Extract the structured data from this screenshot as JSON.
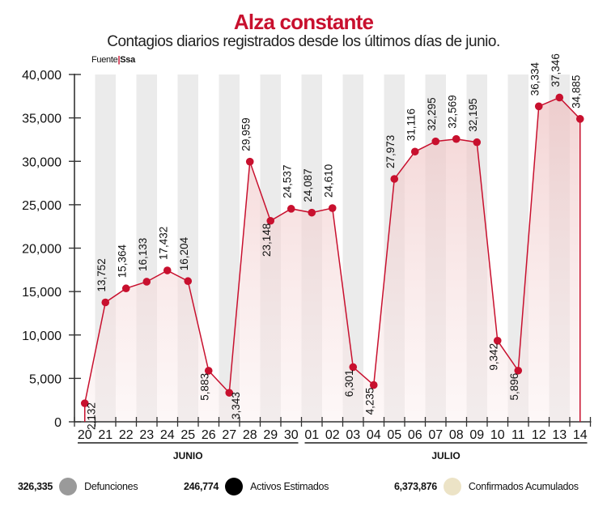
{
  "header": {
    "title": "Alza constante",
    "subtitle": "Contagios diarios registrados desde los últimos días de junio.",
    "source_label": "Fuente",
    "source_value": "Ssa"
  },
  "colors": {
    "accent": "#c8102e",
    "line": "#c8102e",
    "stripe": "#ebebeb",
    "fill_top": "#eebfbf",
    "fill_bottom": "#fbeeee"
  },
  "chart_data": {
    "type": "area",
    "title": "Alza constante",
    "subtitle": "Contagios diarios registrados desde los últimos días de junio.",
    "xlabel": "",
    "ylabel": "",
    "ylim": [
      0,
      40000
    ],
    "yticks": [
      0,
      5000,
      10000,
      15000,
      20000,
      25000,
      30000,
      35000,
      40000
    ],
    "ytick_labels": [
      "0",
      "5,000",
      "10,000",
      "15,000",
      "20,000",
      "25,000",
      "30,000",
      "35,000",
      "40,000"
    ],
    "categories": [
      "20",
      "21",
      "22",
      "23",
      "24",
      "25",
      "26",
      "27",
      "28",
      "29",
      "30",
      "01",
      "02",
      "03",
      "04",
      "05",
      "06",
      "07",
      "08",
      "09",
      "10",
      "11",
      "12",
      "13",
      "14"
    ],
    "months": [
      {
        "label": "JUNIO",
        "from": 0,
        "to": 10
      },
      {
        "label": "JULIO",
        "from": 11,
        "to": 24
      }
    ],
    "series": [
      {
        "name": "Contagios diarios",
        "values": [
          2132,
          13752,
          15364,
          16133,
          17432,
          16204,
          5883,
          3343,
          29959,
          23148,
          24537,
          24087,
          24610,
          6301,
          4235,
          27973,
          31116,
          32295,
          32569,
          32195,
          9342,
          5896,
          36334,
          37346,
          34885
        ],
        "labels": [
          "2,132",
          "13,752",
          "15,364",
          "16,133",
          "17,432",
          "16,204",
          "5,883",
          "3,343",
          "29,959",
          "23,148",
          "24,537",
          "24,087",
          "24,610",
          "6,301",
          "4,235",
          "27,973",
          "31,116",
          "32,295",
          "32,569",
          "32,195",
          "9,342",
          "5,896",
          "36,334",
          "37,346",
          "34,885"
        ],
        "label_positions": [
          "below-right",
          "above",
          "above",
          "above",
          "above",
          "above",
          "below",
          "right",
          "above",
          "below",
          "above",
          "above",
          "above",
          "below",
          "below",
          "above",
          "above",
          "above",
          "above",
          "above",
          "below",
          "below",
          "above",
          "above",
          "above"
        ]
      }
    ],
    "grid": false,
    "stripes": "alternating vertical bands",
    "legend": "bottom"
  },
  "summary": [
    {
      "value": "326,335",
      "label": "Defunciones",
      "color": "#9a9a9a"
    },
    {
      "value": "246,774",
      "label": "Activos Estimados",
      "color": "#000000"
    },
    {
      "value": "6,373,876",
      "label": "Confirmados Acumulados",
      "color": "#ece3c6"
    }
  ]
}
